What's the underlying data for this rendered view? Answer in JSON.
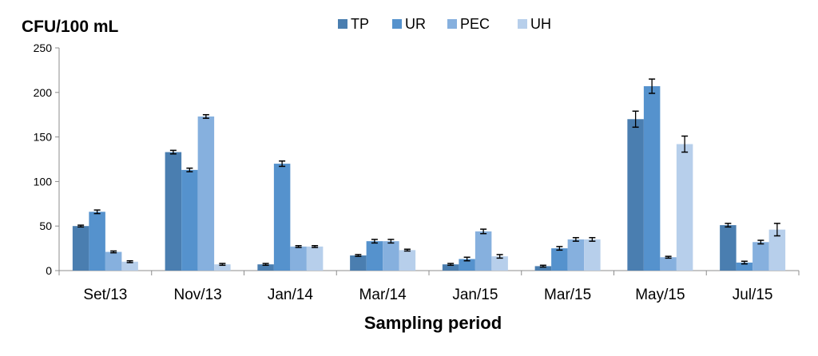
{
  "chart_data": {
    "type": "bar",
    "ylabel": "CFU/100 mL",
    "xlabel": "Sampling period",
    "ylim": [
      0,
      250
    ],
    "yticks": [
      "0",
      "50",
      "100",
      "150",
      "200",
      "250"
    ],
    "categories": [
      "Set/13",
      "Nov/13",
      "Jan/14",
      "Mar/14",
      "Jan/15",
      "Mar/15",
      "May/15",
      "Jul/15"
    ],
    "legend_position": "top",
    "grid": false,
    "error_bars": true,
    "series": [
      {
        "name": "TP",
        "color": "#4a7eb0",
        "values": [
          50,
          133,
          7,
          17,
          7,
          5,
          170,
          51
        ],
        "errors": [
          1,
          2,
          1,
          1,
          1,
          1,
          9,
          2
        ]
      },
      {
        "name": "UR",
        "color": "#5592cd",
        "values": [
          66,
          113,
          120,
          33,
          13,
          25,
          207,
          9
        ],
        "errors": [
          2,
          2,
          3,
          2,
          2,
          2,
          8,
          1.5
        ]
      },
      {
        "name": "PEC",
        "color": "#86b0de",
        "values": [
          21,
          173,
          27,
          33,
          44,
          35,
          15,
          32
        ],
        "errors": [
          1,
          2,
          1,
          2,
          2.5,
          2,
          1,
          2
        ]
      },
      {
        "name": "UH",
        "color": "#b7cfeb",
        "values": [
          10,
          7,
          27,
          23,
          16,
          35,
          142,
          46
        ],
        "errors": [
          1,
          1,
          1,
          1,
          2,
          2,
          9,
          7
        ]
      }
    ]
  }
}
